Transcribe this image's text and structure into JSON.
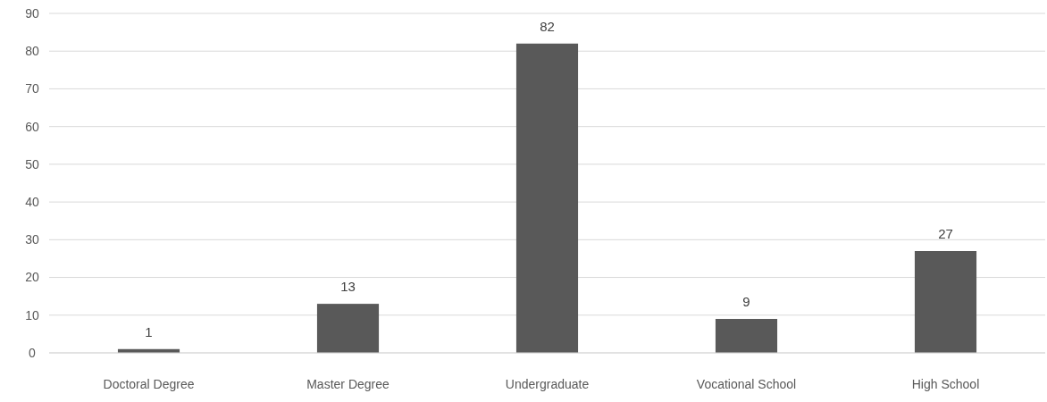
{
  "chart_data": {
    "type": "bar",
    "categories": [
      "Doctoral Degree",
      "Master Degree",
      "Undergraduate",
      "Vocational School",
      "High School"
    ],
    "values": [
      1,
      13,
      82,
      9,
      27
    ],
    "color": "#595959",
    "ylim": [
      0,
      90
    ],
    "yticks": [
      0,
      10,
      20,
      30,
      40,
      50,
      60,
      70,
      80,
      90
    ],
    "grid": "y",
    "data_labels": true
  }
}
